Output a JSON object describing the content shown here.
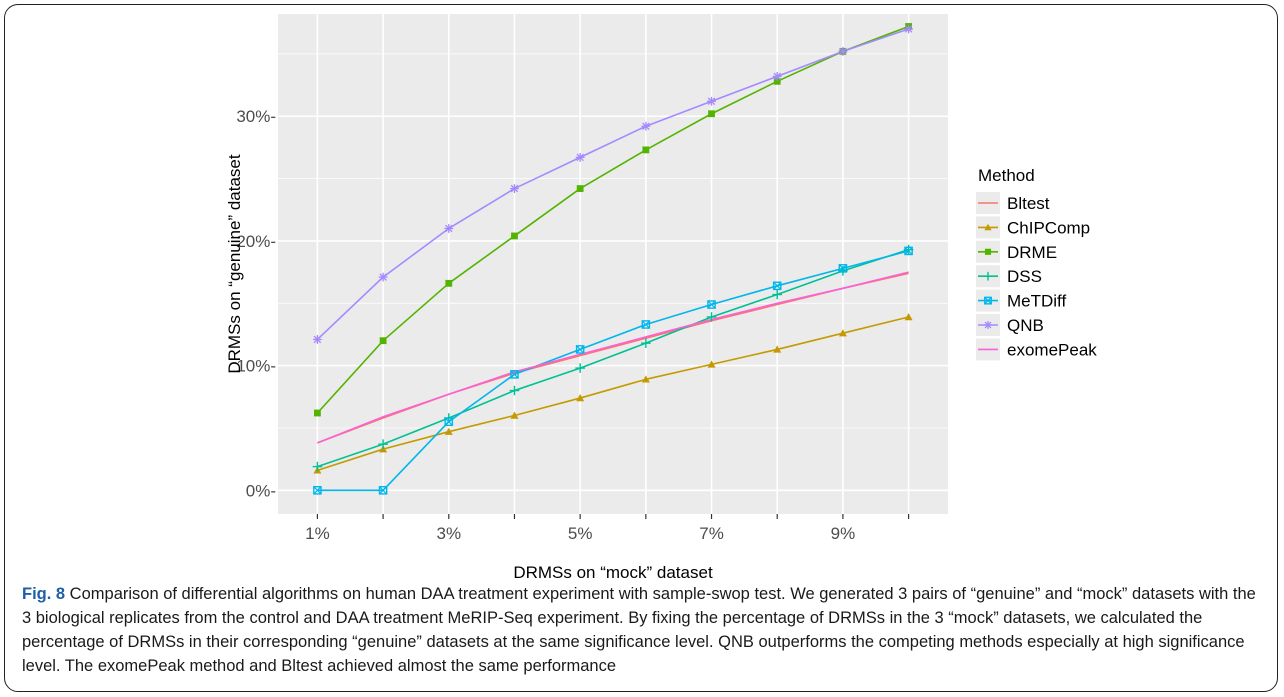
{
  "chart_data": {
    "type": "line",
    "xlabel": "DRMSs on “mock” dataset",
    "ylabel": "DRMSs on “genuine” dataset",
    "x": [
      1,
      2,
      3,
      4,
      5,
      6,
      7,
      8,
      9,
      10
    ],
    "x_tick_values": [
      1,
      3,
      5,
      7,
      9
    ],
    "x_tick_labels": [
      "1%",
      "3%",
      "5%",
      "7%",
      "9%"
    ],
    "xlim": [
      0.4,
      10.6
    ],
    "y_tick_values": [
      0,
      10,
      20,
      30
    ],
    "y_tick_labels": [
      "0%-",
      "10%-",
      "20%-",
      "30%-"
    ],
    "ylim": [
      -1.9,
      38.2
    ],
    "grid": true,
    "legend_title": "Method",
    "legend_position": "right",
    "series": [
      {
        "name": "Bltest",
        "color": "#F8766D",
        "marker": "none",
        "values": [
          3.8,
          5.8,
          7.7,
          9.4,
          10.8,
          12.2,
          13.6,
          14.9,
          16.2,
          17.4
        ]
      },
      {
        "name": "ChIPComp",
        "color": "#C49A00",
        "marker": "triangle",
        "values": [
          1.6,
          3.3,
          4.7,
          6.0,
          7.4,
          8.9,
          10.1,
          11.3,
          12.6,
          13.9
        ]
      },
      {
        "name": "DRME",
        "color": "#53B400",
        "marker": "square",
        "values": [
          6.2,
          12.0,
          16.6,
          20.4,
          24.2,
          27.3,
          30.2,
          32.8,
          35.2,
          37.2
        ]
      },
      {
        "name": "DSS",
        "color": "#00C094",
        "marker": "plus",
        "values": [
          1.9,
          3.7,
          5.8,
          8.0,
          9.8,
          11.8,
          13.9,
          15.7,
          17.6,
          19.3
        ]
      },
      {
        "name": "MeTDiff",
        "color": "#00B6EB",
        "marker": "boxed-x",
        "values": [
          0.0,
          0.0,
          5.5,
          9.3,
          11.3,
          13.3,
          14.9,
          16.4,
          17.8,
          19.2
        ]
      },
      {
        "name": "QNB",
        "color": "#A58AFF",
        "marker": "asterisk",
        "values": [
          12.1,
          17.1,
          21.0,
          24.2,
          26.7,
          29.2,
          31.2,
          33.2,
          35.2,
          37.0
        ]
      },
      {
        "name": "exomePeak",
        "color": "#FB61D7",
        "marker": "none",
        "values": [
          3.8,
          5.9,
          7.7,
          9.5,
          10.9,
          12.3,
          13.7,
          15.0,
          16.2,
          17.5
        ]
      }
    ]
  },
  "caption": {
    "label": "Fig. 8",
    "text": " Comparison of differential algorithms on human DAA treatment experiment with sample-swop test. We generated 3 pairs of “genuine” and “mock” datasets with the 3 biological replicates from the control and DAA treatment MeRIP-Seq experiment. By fixing the percentage of DRMSs in the 3 “mock” datasets, we calculated the percentage of DRMSs in their corresponding “genuine” datasets at the same significance level. QNB outperforms the competing methods especially at high significance level. The exomePeak method and Bltest achieved almost the same performance"
  }
}
